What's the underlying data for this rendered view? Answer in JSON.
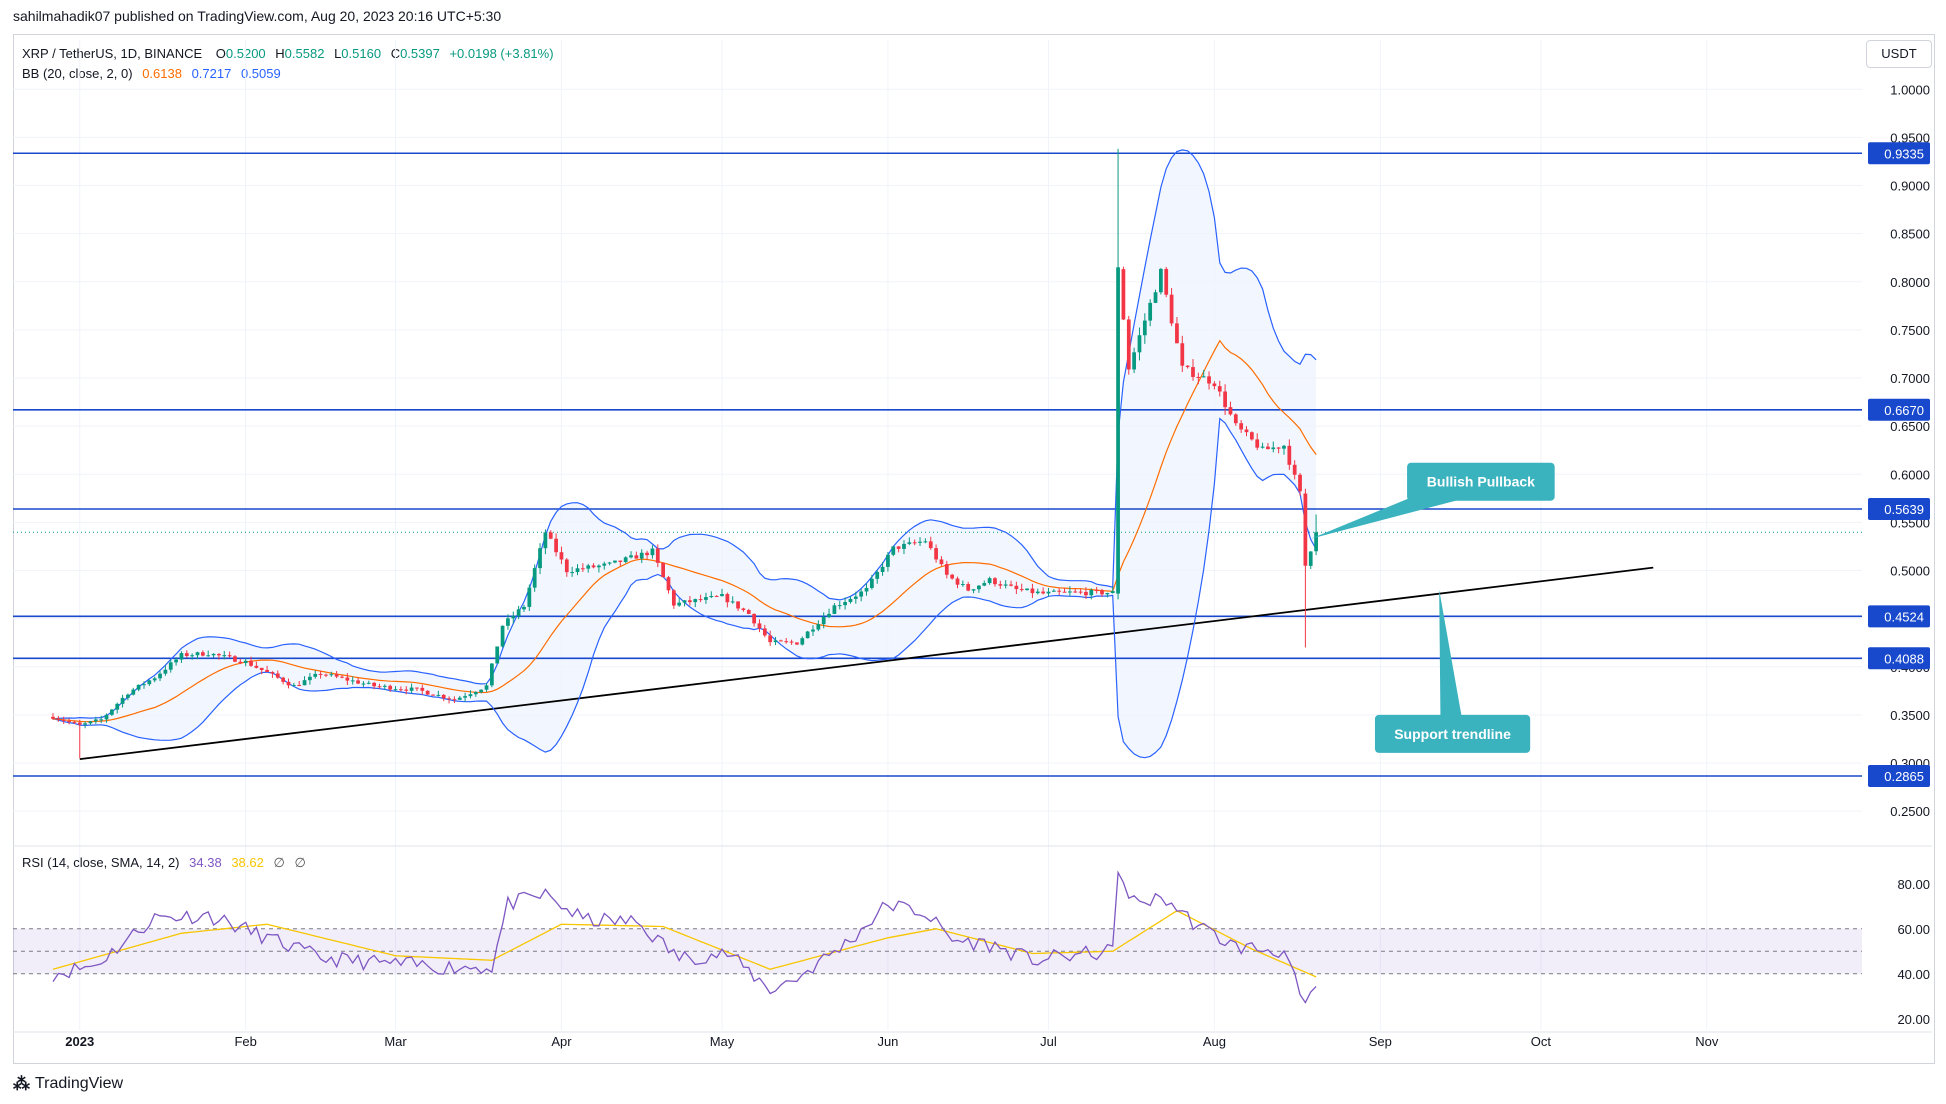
{
  "header": {
    "published": "sahilmahadik07 published on TradingView.com, Aug 20, 2023 20:16 UTC+5:30"
  },
  "legend": {
    "symbol": "XRP / TetherUS, 1D, BINANCE",
    "o_label": "O",
    "o": "0.5200",
    "h_label": "H",
    "h": "0.5582",
    "l_label": "L",
    "l": "0.5160",
    "c_label": "C",
    "c": "0.5397",
    "change": "+0.0198 (+3.81%)",
    "bb_label": "BB (20, close, 2, 0)",
    "bb_basis": "0.6138",
    "bb_upper": "0.7217",
    "bb_lower": "0.5059",
    "rsi_label": "RSI (14, close, SMA, 14, 2)",
    "rsi_value": "34.38",
    "rsi_ma": "38.62",
    "rsi_na1": "∅",
    "rsi_na2": "∅"
  },
  "currency": "USDT",
  "footer": {
    "brand": "TradingView",
    "logo_icon": "tradingview-logo-icon"
  },
  "colors": {
    "up": "#089981",
    "down": "#f23645",
    "hline": "#1848cc",
    "bb_band": "#2962ff",
    "bb_basis": "#ff6d00",
    "rsi": "#7e57c2",
    "rsi_ma": "#f7c600",
    "annotation": "#3bb3bf"
  },
  "chart_data": [
    {
      "type": "candlestick",
      "name": "XRP / TetherUS, 1D, BINANCE",
      "y_axis": {
        "min": 0.22,
        "max": 1.02,
        "side": "right",
        "ticks": [
          "0.2500",
          "0.3000",
          "0.3500",
          "0.4000",
          "0.4500",
          "0.5000",
          "0.5500",
          "0.6000",
          "0.6500",
          "0.7000",
          "0.7500",
          "0.8000",
          "0.8500",
          "0.9000",
          "0.9500",
          "1.0000"
        ]
      },
      "x_axis": {
        "start": "2022-12-27",
        "end": "2023-11-30",
        "ticks": [
          {
            "date": "2023-01-01",
            "label": "2023",
            "bold": true
          },
          {
            "date": "2023-02-01",
            "label": "Feb"
          },
          {
            "date": "2023-03-01",
            "label": "Mar"
          },
          {
            "date": "2023-04-01",
            "label": "Apr"
          },
          {
            "date": "2023-05-01",
            "label": "May"
          },
          {
            "date": "2023-06-01",
            "label": "Jun"
          },
          {
            "date": "2023-07-01",
            "label": "Jul"
          },
          {
            "date": "2023-08-01",
            "label": "Aug"
          },
          {
            "date": "2023-09-01",
            "label": "Sep"
          },
          {
            "date": "2023-10-01",
            "label": "Oct"
          },
          {
            "date": "2023-11-01",
            "label": "Nov"
          }
        ]
      },
      "horizontal_levels": [
        "0.9335",
        "0.6670",
        "0.5639",
        "0.4524",
        "0.4088",
        "0.2865"
      ],
      "last_price_level": 0.5397,
      "trendline": [
        {
          "date": "2023-01-01",
          "price": 0.304
        },
        {
          "date": "2023-10-22",
          "price": 0.503
        }
      ],
      "annotations": [
        {
          "text": "Bullish Pullback",
          "anchor": {
            "date": "2023-08-19",
            "price": 0.533
          },
          "box_at": {
            "date": "2023-09-06",
            "price": 0.612
          }
        },
        {
          "text": "Support trendline",
          "anchor": {
            "date": "2023-09-12",
            "price": 0.48
          },
          "box_at": {
            "date": "2023-08-31",
            "price": 0.35
          }
        }
      ],
      "ohlc_keyframes": [
        {
          "date": "2022-12-27",
          "close": 0.348
        },
        {
          "date": "2023-01-01",
          "close": 0.339
        },
        {
          "date": "2023-01-05",
          "close": 0.345
        },
        {
          "date": "2023-01-10",
          "close": 0.373
        },
        {
          "date": "2023-01-15",
          "close": 0.389
        },
        {
          "date": "2023-01-20",
          "close": 0.412
        },
        {
          "date": "2023-01-25",
          "close": 0.414
        },
        {
          "date": "2023-02-01",
          "close": 0.405
        },
        {
          "date": "2023-02-10",
          "close": 0.38
        },
        {
          "date": "2023-02-15",
          "close": 0.393
        },
        {
          "date": "2023-02-25",
          "close": 0.38
        },
        {
          "date": "2023-03-05",
          "close": 0.376
        },
        {
          "date": "2023-03-12",
          "close": 0.366
        },
        {
          "date": "2023-03-18",
          "close": 0.38
        },
        {
          "date": "2023-03-21",
          "close": 0.443
        },
        {
          "date": "2023-03-25",
          "close": 0.463
        },
        {
          "date": "2023-03-29",
          "close": 0.54
        },
        {
          "date": "2023-04-02",
          "close": 0.5
        },
        {
          "date": "2023-04-10",
          "close": 0.506
        },
        {
          "date": "2023-04-18",
          "close": 0.52
        },
        {
          "date": "2023-04-22",
          "close": 0.465
        },
        {
          "date": "2023-05-01",
          "close": 0.473
        },
        {
          "date": "2023-05-06",
          "close": 0.455
        },
        {
          "date": "2023-05-10",
          "close": 0.425
        },
        {
          "date": "2023-05-15",
          "close": 0.425
        },
        {
          "date": "2023-05-22",
          "close": 0.463
        },
        {
          "date": "2023-05-28",
          "close": 0.48
        },
        {
          "date": "2023-06-02",
          "close": 0.523
        },
        {
          "date": "2023-06-08",
          "close": 0.531
        },
        {
          "date": "2023-06-12",
          "close": 0.495
        },
        {
          "date": "2023-06-16",
          "close": 0.48
        },
        {
          "date": "2023-06-20",
          "close": 0.49
        },
        {
          "date": "2023-06-25",
          "close": 0.48
        },
        {
          "date": "2023-06-30",
          "close": 0.476
        },
        {
          "date": "2023-07-05",
          "close": 0.477
        },
        {
          "date": "2023-07-13",
          "close": 0.477
        },
        {
          "date": "2023-07-14",
          "close": 0.815
        },
        {
          "date": "2023-07-16",
          "close": 0.71
        },
        {
          "date": "2023-07-19",
          "close": 0.76
        },
        {
          "date": "2023-07-22",
          "close": 0.81
        },
        {
          "date": "2023-07-26",
          "close": 0.71
        },
        {
          "date": "2023-08-01",
          "close": 0.695
        },
        {
          "date": "2023-08-05",
          "close": 0.65
        },
        {
          "date": "2023-08-10",
          "close": 0.625
        },
        {
          "date": "2023-08-14",
          "close": 0.63
        },
        {
          "date": "2023-08-17",
          "close": 0.58
        },
        {
          "date": "2023-08-18",
          "close": 0.505
        },
        {
          "date": "2023-08-20",
          "close": 0.5397
        }
      ]
    },
    {
      "type": "line",
      "name": "RSI (14, close, SMA, 14, 2)",
      "y_axis": {
        "min": 15,
        "max": 95,
        "ticks": [
          "20.00",
          "40.00",
          "60.00",
          "80.00"
        ],
        "band": [
          40,
          60
        ],
        "mid": 50
      },
      "rsi_keyframes": [
        {
          "date": "2022-12-27",
          "v": 40
        },
        {
          "date": "2023-01-04",
          "v": 44
        },
        {
          "date": "2023-01-15",
          "v": 65
        },
        {
          "date": "2023-01-25",
          "v": 66
        },
        {
          "date": "2023-02-05",
          "v": 56
        },
        {
          "date": "2023-02-15",
          "v": 47
        },
        {
          "date": "2023-02-25",
          "v": 45
        },
        {
          "date": "2023-03-10",
          "v": 43
        },
        {
          "date": "2023-03-19",
          "v": 43
        },
        {
          "date": "2023-03-22",
          "v": 71
        },
        {
          "date": "2023-03-29",
          "v": 75
        },
        {
          "date": "2023-04-05",
          "v": 64
        },
        {
          "date": "2023-04-15",
          "v": 63
        },
        {
          "date": "2023-04-23",
          "v": 47
        },
        {
          "date": "2023-05-02",
          "v": 49
        },
        {
          "date": "2023-05-10",
          "v": 33
        },
        {
          "date": "2023-05-15",
          "v": 38
        },
        {
          "date": "2023-05-25",
          "v": 55
        },
        {
          "date": "2023-06-01",
          "v": 71
        },
        {
          "date": "2023-06-08",
          "v": 67
        },
        {
          "date": "2023-06-13",
          "v": 55
        },
        {
          "date": "2023-06-20",
          "v": 53
        },
        {
          "date": "2023-06-28",
          "v": 46
        },
        {
          "date": "2023-07-05",
          "v": 48
        },
        {
          "date": "2023-07-13",
          "v": 50
        },
        {
          "date": "2023-07-14",
          "v": 88
        },
        {
          "date": "2023-07-16",
          "v": 72
        },
        {
          "date": "2023-07-23",
          "v": 73
        },
        {
          "date": "2023-07-29",
          "v": 61
        },
        {
          "date": "2023-08-05",
          "v": 52
        },
        {
          "date": "2023-08-14",
          "v": 50
        },
        {
          "date": "2023-08-18",
          "v": 24
        },
        {
          "date": "2023-08-20",
          "v": 34.38
        }
      ],
      "ma_keyframes": [
        {
          "date": "2022-12-27",
          "v": 42
        },
        {
          "date": "2023-01-20",
          "v": 58
        },
        {
          "date": "2023-02-05",
          "v": 62
        },
        {
          "date": "2023-03-01",
          "v": 48
        },
        {
          "date": "2023-03-19",
          "v": 46
        },
        {
          "date": "2023-04-01",
          "v": 62
        },
        {
          "date": "2023-04-20",
          "v": 61
        },
        {
          "date": "2023-05-10",
          "v": 42
        },
        {
          "date": "2023-06-01",
          "v": 56
        },
        {
          "date": "2023-06-10",
          "v": 60
        },
        {
          "date": "2023-06-28",
          "v": 49
        },
        {
          "date": "2023-07-13",
          "v": 50
        },
        {
          "date": "2023-07-25",
          "v": 68
        },
        {
          "date": "2023-08-08",
          "v": 51
        },
        {
          "date": "2023-08-20",
          "v": 38.62
        }
      ]
    }
  ]
}
